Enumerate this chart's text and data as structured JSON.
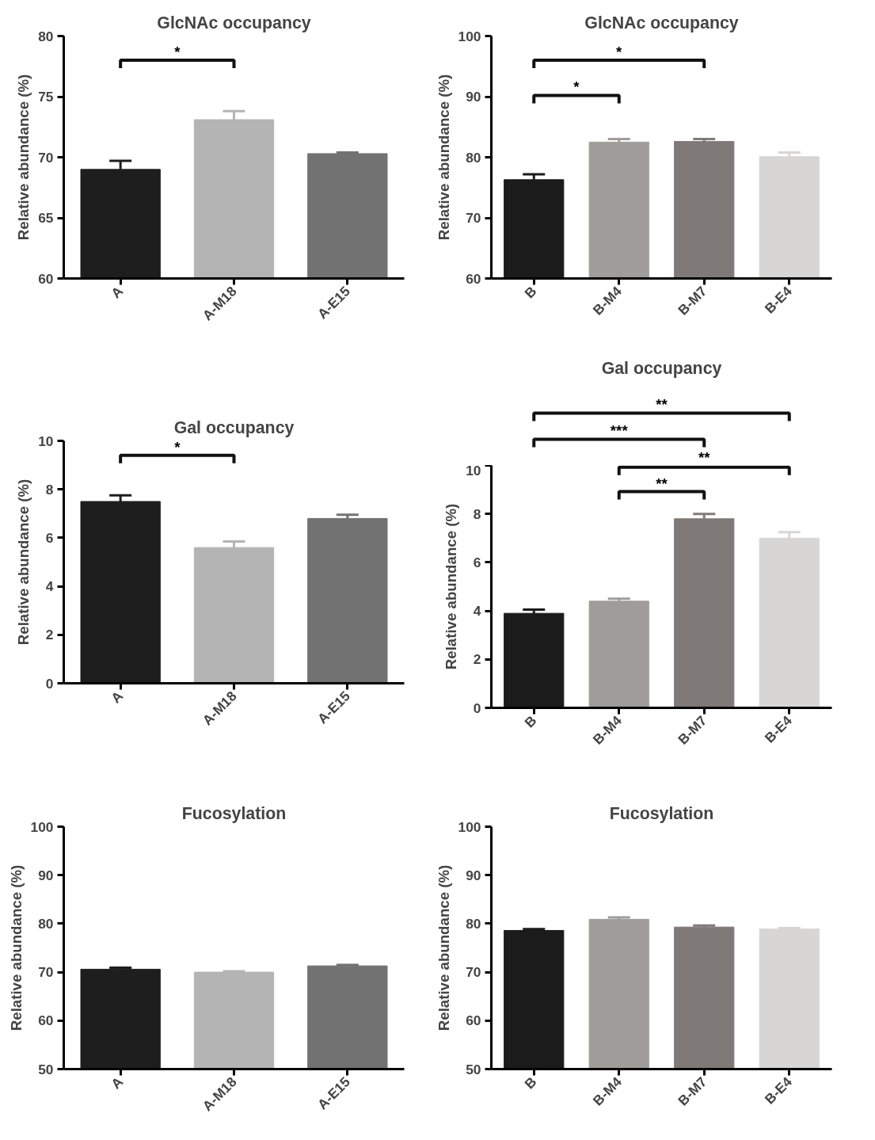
{
  "chart_data": [
    {
      "type": "bar",
      "title": "GlcNAc occupancy",
      "ylabel": "Relative abundance (%)",
      "categories": [
        "A",
        "A-M18",
        "A-E15"
      ],
      "values": [
        69.0,
        73.1,
        70.3
      ],
      "colors": [
        "#1e1e1e",
        "#b4b4b4",
        "#727272"
      ],
      "errors": [
        [
          69.0,
          69.7
        ],
        [
          73.1,
          73.8
        ],
        [
          70.3,
          70.4
        ]
      ],
      "ylim": [
        60,
        80
      ],
      "yticks": [
        60,
        65,
        70,
        75,
        80
      ],
      "grid": false,
      "annotations": [
        "*"
      ]
    },
    {
      "type": "bar",
      "title": "GlcNAc occupancy",
      "ylabel": "Relative abundance (%)",
      "categories": [
        "B",
        "B-M4",
        "B-M7",
        "B-E4"
      ],
      "values": [
        76.3,
        82.5,
        82.6,
        80.1
      ],
      "colors": [
        "#1b1b1b",
        "#a09c9a",
        "#7f7a77",
        "#d8d6d4"
      ],
      "errors": [
        [
          76.3,
          77.2
        ],
        [
          82.5,
          83.0
        ],
        [
          82.6,
          83.0
        ],
        [
          80.1,
          80.8
        ]
      ],
      "ylim": [
        60,
        100
      ],
      "yticks": [
        60,
        70,
        80,
        90,
        100
      ],
      "grid": false,
      "annotations": [
        "*",
        "*"
      ]
    },
    {
      "type": "bar",
      "title": "Gal occupancy",
      "ylabel": "Relative abundance (%)",
      "categories": [
        "A",
        "A-M18",
        "A-E15"
      ],
      "values": [
        7.5,
        5.6,
        6.8
      ],
      "colors": [
        "#1e1e1e",
        "#b4b4b4",
        "#727272"
      ],
      "errors": [
        [
          7.5,
          7.75
        ],
        [
          5.6,
          5.85
        ],
        [
          6.8,
          6.95
        ]
      ],
      "ylim": [
        0,
        10
      ],
      "yticks": [
        0,
        2,
        4,
        6,
        8,
        10
      ],
      "grid": false,
      "annotations": [
        "*"
      ]
    },
    {
      "type": "bar",
      "title": "Gal occupancy",
      "ylabel": "Relative abundance (%)",
      "categories": [
        "B",
        "B-M4",
        "B-M7",
        "B-E4"
      ],
      "values": [
        3.9,
        4.4,
        7.8,
        7.0
      ],
      "colors": [
        "#1b1b1b",
        "#a09c9a",
        "#7f7a77",
        "#d8d6d4"
      ],
      "errors": [
        [
          3.9,
          4.05
        ],
        [
          4.4,
          4.5
        ],
        [
          7.8,
          8.0
        ],
        [
          7.0,
          7.25
        ]
      ],
      "ylim": [
        0,
        10
      ],
      "yticks": [
        0,
        2,
        4,
        6,
        8,
        10
      ],
      "grid": false,
      "annotations": [
        "**",
        "***",
        "**",
        "**"
      ]
    },
    {
      "type": "bar",
      "title": "Fucosylation",
      "ylabel": "Relative abundance (%)",
      "categories": [
        "A",
        "A-M18",
        "A-E15"
      ],
      "values": [
        70.6,
        70.0,
        71.3
      ],
      "colors": [
        "#1e1e1e",
        "#b4b4b4",
        "#727272"
      ],
      "errors": [
        [
          70.6,
          70.9
        ],
        [
          70.0,
          70.2
        ],
        [
          71.3,
          71.5
        ]
      ],
      "ylim": [
        50,
        100
      ],
      "yticks": [
        50,
        60,
        70,
        80,
        90,
        100
      ],
      "grid": false
    },
    {
      "type": "bar",
      "title": "Fucosylation",
      "ylabel": "Relative abundance (%)",
      "categories": [
        "B",
        "B-M4",
        "B-M7",
        "B-E4"
      ],
      "values": [
        78.6,
        80.9,
        79.3,
        78.9
      ],
      "colors": [
        "#1b1b1b",
        "#a09c9a",
        "#7f7a77",
        "#d8d6d4"
      ],
      "errors": [
        [
          78.6,
          78.9
        ],
        [
          80.9,
          81.3
        ],
        [
          79.3,
          79.6
        ],
        [
          78.9,
          79.1
        ]
      ],
      "ylim": [
        50,
        100
      ],
      "yticks": [
        50,
        60,
        70,
        80,
        90,
        100
      ],
      "grid": false
    }
  ]
}
